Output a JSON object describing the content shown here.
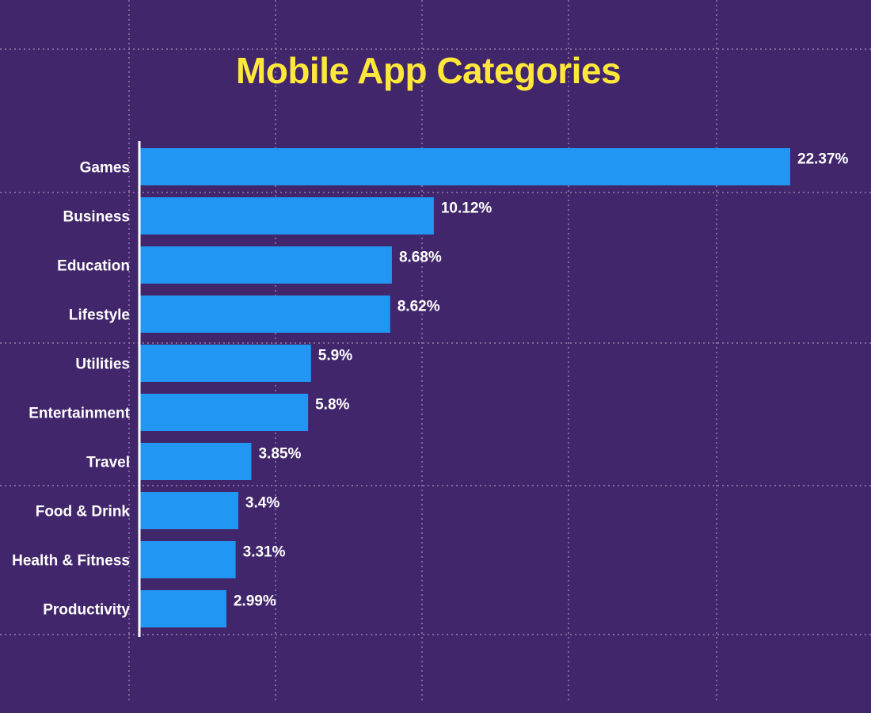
{
  "chart_data": {
    "type": "bar",
    "orientation": "horizontal",
    "title": "Mobile App Categories",
    "categories": [
      "Games",
      "Business",
      "Education",
      "Lifestyle",
      "Utilities",
      "Entertainment",
      "Travel",
      "Food & Drink",
      "Health & Fitness",
      "Productivity"
    ],
    "values": [
      22.37,
      10.12,
      8.68,
      8.62,
      5.9,
      5.8,
      3.85,
      3.4,
      3.31,
      2.99
    ],
    "value_labels": [
      "22.37%",
      "10.12%",
      "8.68%",
      "8.62%",
      "5.9%",
      "5.8%",
      "3.85%",
      "3.4%",
      "3.31%",
      "2.99%"
    ],
    "value_unit": "%",
    "xlim": [
      0,
      22.37
    ],
    "xlabel": "",
    "ylabel": "",
    "grid": true,
    "legend": false,
    "colors": {
      "background": "#42266b",
      "bar": "#2196f3",
      "title": "#ffe83a",
      "text": "#ffffff",
      "axis": "#ffffff",
      "grid": "#7b6a9b"
    }
  }
}
